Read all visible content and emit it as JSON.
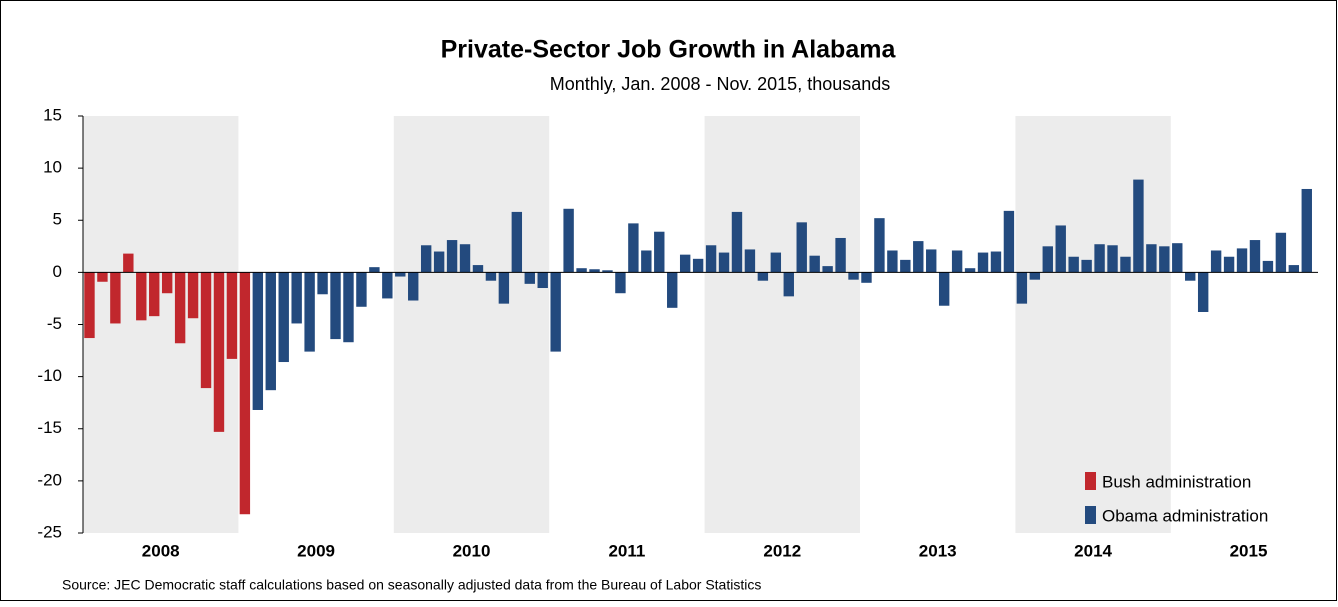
{
  "chart_data": {
    "type": "bar",
    "title": "Private-Sector Job Growth in Alabama",
    "subtitle": "Monthly, Jan. 2008 - Nov. 2015, thousands",
    "source": "Source: JEC Democratic staff calculations based on seasonally adjusted data from the Bureau of Labor Statistics",
    "years": [
      "2008",
      "2009",
      "2010",
      "2011",
      "2012",
      "2013",
      "2014",
      "2015"
    ],
    "ylim": [
      -25,
      15
    ],
    "yticks": [
      -25,
      -20,
      -15,
      -10,
      -5,
      0,
      5,
      10,
      15
    ],
    "legend": "bottom-right",
    "series": [
      {
        "name": "Bush administration",
        "color": "#c1272d",
        "values": [
          -6.3,
          -0.9,
          -4.9,
          1.8,
          -4.6,
          -4.2,
          -2.0,
          -6.8,
          -4.4,
          -11.1,
          -15.3,
          -8.3,
          -23.2,
          null,
          null,
          null,
          null,
          null,
          null,
          null,
          null,
          null,
          null,
          null,
          null,
          null,
          null,
          null,
          null,
          null,
          null,
          null,
          null,
          null,
          null,
          null,
          null,
          null,
          null,
          null,
          null,
          null,
          null,
          null,
          null,
          null,
          null,
          null,
          null,
          null,
          null,
          null,
          null,
          null,
          null,
          null,
          null,
          null,
          null,
          null,
          null,
          null,
          null,
          null,
          null,
          null,
          null,
          null,
          null,
          null,
          null,
          null,
          null,
          null,
          null,
          null,
          null,
          null,
          null,
          null,
          null,
          null,
          null,
          null,
          null,
          null,
          null,
          null,
          null,
          null,
          null,
          null,
          null,
          null,
          null
        ]
      },
      {
        "name": "Obama administration",
        "color": "#234a7e",
        "values": [
          null,
          null,
          null,
          null,
          null,
          null,
          null,
          null,
          null,
          null,
          null,
          null,
          null,
          -13.2,
          -11.3,
          -8.6,
          -4.9,
          -7.6,
          -2.1,
          -6.4,
          -6.7,
          -3.3,
          0.5,
          -2.5,
          -0.4,
          -2.7,
          2.6,
          2.0,
          3.1,
          2.7,
          0.7,
          -0.8,
          -3.0,
          5.8,
          -1.1,
          -1.5,
          -7.6,
          6.1,
          0.4,
          0.3,
          0.2,
          -2.0,
          4.7,
          2.1,
          3.9,
          -3.4,
          1.7,
          1.3,
          2.6,
          1.9,
          5.8,
          2.2,
          -0.8,
          1.9,
          -2.3,
          4.8,
          1.6,
          0.6,
          3.3,
          -0.7,
          -1.0,
          5.2,
          2.1,
          1.2,
          3.0,
          2.2,
          -3.2,
          2.1,
          0.4,
          1.9,
          2.0,
          5.9,
          -3.0,
          -0.7,
          2.5,
          4.5,
          1.5,
          1.2,
          2.7,
          2.6,
          1.5,
          8.9,
          2.7,
          2.5,
          2.8,
          -0.8,
          -3.8,
          2.1,
          1.5,
          2.3,
          3.1,
          1.1,
          3.8,
          0.7,
          8.0
        ]
      }
    ]
  }
}
